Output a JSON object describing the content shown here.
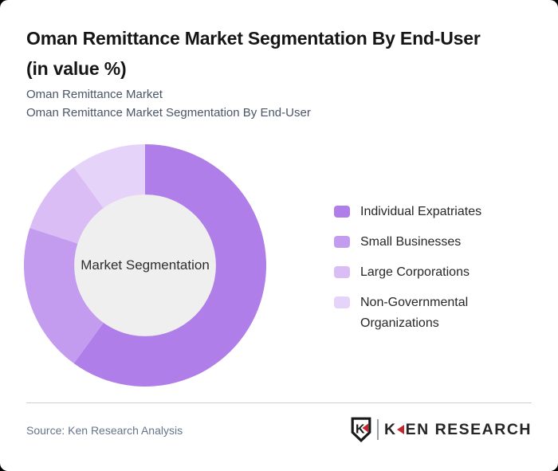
{
  "page": {
    "background_color": "#000000",
    "card_color": "#ffffff"
  },
  "header": {
    "title_line1": "Oman Remittance Market Segmentation By End-User",
    "title_line2": "(in value %)",
    "subtitle_line1": "Oman Remittance Market",
    "subtitle_line2": "Oman Remittance Market Segmentation By End-User"
  },
  "chart_data": {
    "type": "pie",
    "variant": "donut",
    "title": "Oman Remittance Market Segmentation By End-User (in value %)",
    "center_label": "Market Segmentation",
    "categories": [
      "Individual Expatriates",
      "Small Businesses",
      "Large Corporations",
      "Non-Governmental Organizations"
    ],
    "values": [
      60,
      20,
      10,
      10
    ],
    "unit": "value %",
    "colors": [
      "#b07ee8",
      "#c49cef",
      "#d9bdf4",
      "#e5d3f9"
    ],
    "start_angle_deg": 0,
    "direction": "clockwise",
    "inner_radius_ratio": 0.585,
    "inner_circle_color": "#efefef",
    "legend_position": "right",
    "data_labels_shown": false
  },
  "footer": {
    "source": "Source: Ken Research Analysis",
    "logo": {
      "shield_letter": "K",
      "wordmark_k": "K",
      "wordmark_rest": "EN RESEARCH",
      "accent_color": "#c2272f",
      "text_color": "#262626"
    }
  }
}
